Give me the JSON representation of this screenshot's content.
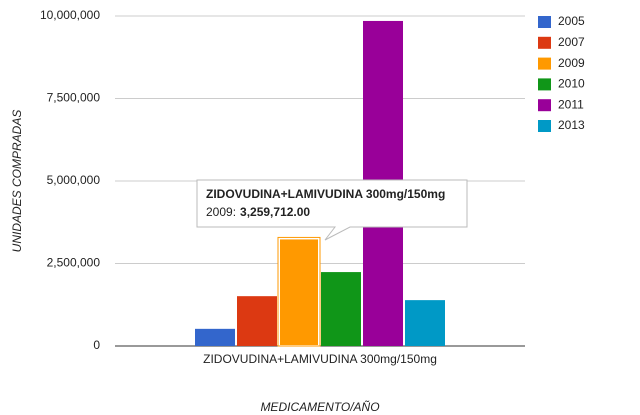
{
  "chart_data": {
    "type": "bar",
    "categories": [
      "ZIDOVUDINA+LAMIVUDINA 300mg/150mg"
    ],
    "series": [
      {
        "name": "2005",
        "color": "#3366cc",
        "values": [
          520000
        ]
      },
      {
        "name": "2007",
        "color": "#dc3912",
        "values": [
          1510000
        ]
      },
      {
        "name": "2009",
        "color": "#ff9900",
        "values": [
          3259712
        ],
        "value_labels": [
          "3,259,712.00"
        ]
      },
      {
        "name": "2010",
        "color": "#109618",
        "values": [
          2240000
        ]
      },
      {
        "name": "2011",
        "color": "#990099",
        "values": [
          9850000
        ]
      },
      {
        "name": "2013",
        "color": "#0099c6",
        "values": [
          1390000
        ]
      }
    ],
    "ylim": [
      0,
      10000000
    ],
    "yticks": [
      0,
      {
        "value": 2500000,
        "label": "2,500,000"
      },
      {
        "value": 5000000,
        "label": "5,000,000"
      },
      {
        "value": 7500000,
        "label": "7,500,000"
      },
      {
        "value": 10000000,
        "label": "10,000,000"
      }
    ],
    "y_label": "UNIDADES COMPRADAS",
    "x_label": "MEDICAMENTO/AÑO",
    "grid": true,
    "legend": "right",
    "tooltip": {
      "title": "ZIDOVUDINA+LAMIVUDINA 300mg/150mg",
      "series_label": "2009:",
      "series_index": 2
    }
  }
}
